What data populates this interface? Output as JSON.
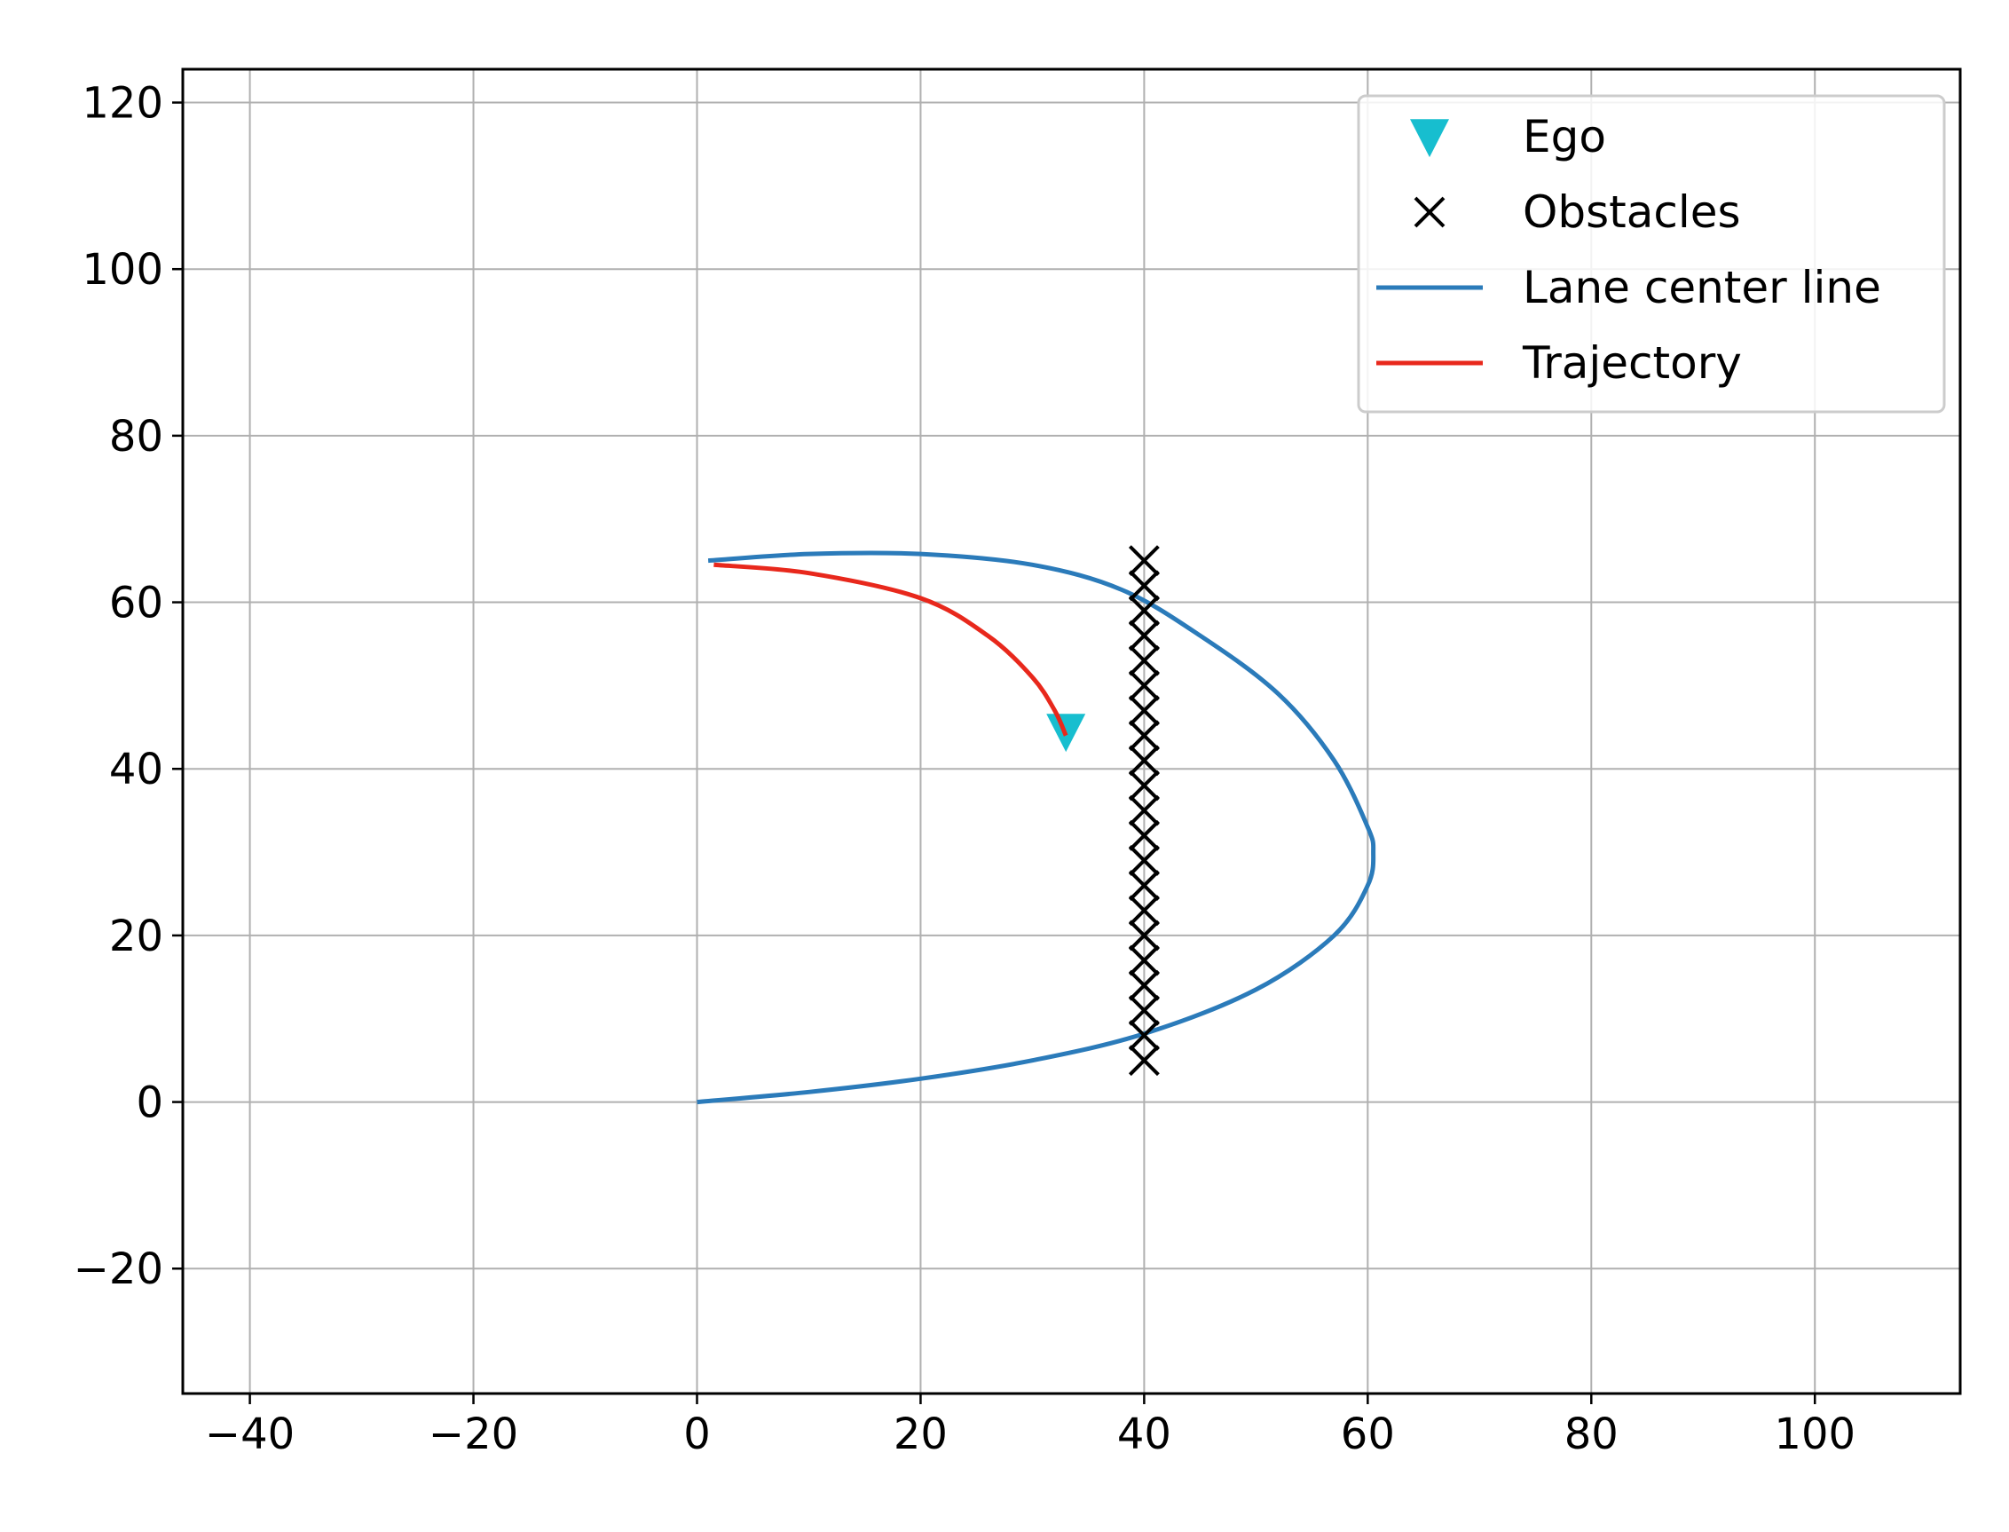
{
  "chart_data": {
    "type": "scatter",
    "title": "",
    "xlabel": "",
    "ylabel": "",
    "xlim": [
      -46,
      113
    ],
    "ylim": [
      -35,
      124
    ],
    "xticks": [
      -40,
      -20,
      0,
      20,
      40,
      60,
      80,
      100
    ],
    "yticks": [
      -20,
      0,
      20,
      40,
      60,
      80,
      100,
      120
    ],
    "xtick_labels": [
      "−40",
      "−20",
      "0",
      "20",
      "40",
      "60",
      "80",
      "100"
    ],
    "ytick_labels": [
      "−20",
      "0",
      "20",
      "40",
      "60",
      "80",
      "100",
      "120"
    ],
    "grid": true,
    "legend_position": "upper-right",
    "series": [
      {
        "name": "Ego",
        "kind": "marker",
        "marker": "triangle-down",
        "color": "#17becf",
        "points": [
          [
            33,
            44.5
          ]
        ]
      },
      {
        "name": "Obstacles",
        "kind": "marker",
        "marker": "x",
        "color": "#000000",
        "x": 40,
        "y_values": [
          5,
          8,
          11,
          14,
          17,
          20,
          23,
          26,
          29,
          32,
          35,
          38,
          41,
          44,
          47,
          50,
          53,
          56,
          59,
          62,
          65
        ]
      },
      {
        "name": "Lane center line",
        "kind": "line",
        "color": "#2b7bba",
        "points": [
          [
            0,
            0
          ],
          [
            10,
            1.2
          ],
          [
            20,
            2.8
          ],
          [
            30,
            5
          ],
          [
            40,
            8.2
          ],
          [
            50,
            13.5
          ],
          [
            57,
            20
          ],
          [
            60,
            26
          ],
          [
            60.5,
            30
          ],
          [
            60,
            33
          ],
          [
            57,
            41
          ],
          [
            52,
            49
          ],
          [
            45,
            56
          ],
          [
            38,
            61.5
          ],
          [
            30,
            64.5
          ],
          [
            20,
            65.8
          ],
          [
            10,
            65.8
          ],
          [
            1,
            65
          ]
        ]
      },
      {
        "name": "Trajectory",
        "kind": "line",
        "color": "#e8281c",
        "points": [
          [
            1.5,
            64.5
          ],
          [
            10,
            63.5
          ],
          [
            20,
            60.5
          ],
          [
            26,
            56
          ],
          [
            30,
            51
          ],
          [
            32,
            47
          ],
          [
            33,
            44
          ]
        ]
      }
    ]
  }
}
